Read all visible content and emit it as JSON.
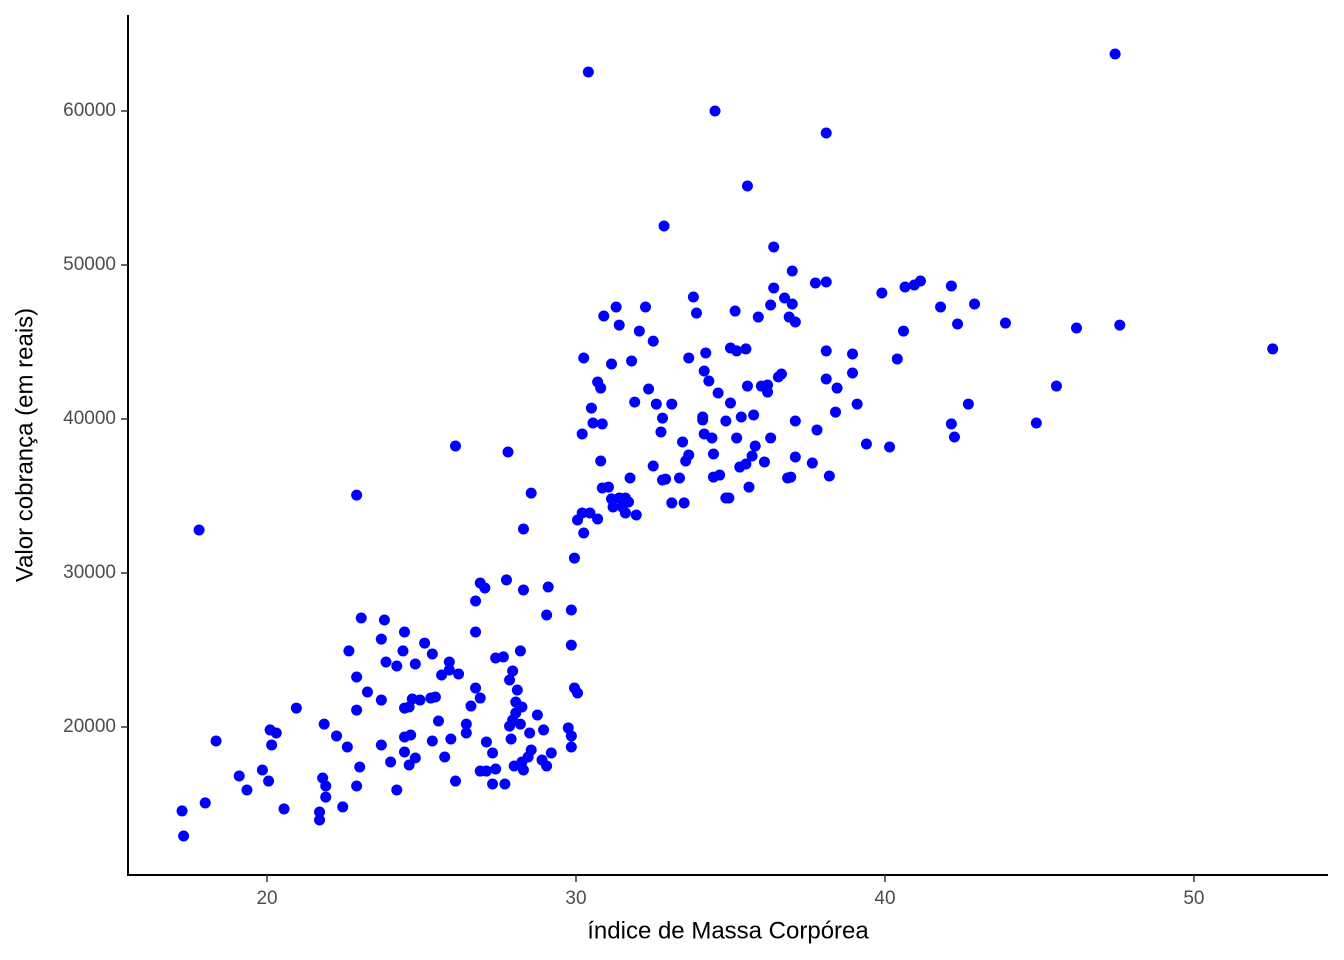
{
  "chart_data": {
    "type": "scatter",
    "x_label": "índice de Massa Corpórea",
    "y_label": "Valor cobrança (em reais)",
    "color": "blue",
    "xlim": [
      15.5,
      54.34
    ],
    "ylim": [
      10390,
      66234
    ],
    "xticks": [
      20,
      30,
      40,
      50
    ],
    "yticks": [
      20000,
      30000,
      40000,
      50000,
      60000
    ],
    "grid": false,
    "x": [
      17.25,
      17.3,
      18.0,
      18.35,
      17.8,
      19.1,
      19.35,
      19.85,
      20.05,
      20.1,
      20.15,
      20.3,
      20.55,
      20.95,
      21.7,
      21.7,
      21.8,
      21.9,
      21.9,
      21.85,
      22.25,
      22.45,
      22.6,
      22.65,
      22.9,
      22.9,
      22.9,
      23.0,
      22.9,
      23.05,
      23.25,
      23.7,
      23.7,
      23.8,
      23.85,
      24.2,
      23.7,
      24.0,
      24.2,
      24.4,
      24.45,
      24.45,
      24.45,
      24.45,
      24.6,
      24.65,
      24.7,
      24.6,
      24.8,
      24.8,
      24.95,
      25.1,
      25.35,
      25.35,
      25.3,
      25.45,
      25.65,
      25.55,
      25.75,
      25.9,
      25.9,
      25.95,
      26.1,
      26.1,
      26.2,
      26.45,
      26.45,
      26.6,
      26.75,
      26.75,
      26.75,
      26.9,
      26.9,
      26.9,
      27.05,
      27.1,
      27.1,
      27.3,
      27.3,
      27.4,
      27.4,
      27.65,
      27.7,
      27.75,
      27.8,
      27.85,
      27.85,
      27.9,
      27.95,
      27.95,
      28.0,
      28.05,
      28.05,
      28.1,
      28.2,
      28.2,
      28.25,
      28.25,
      28.3,
      28.3,
      28.3,
      28.45,
      28.5,
      28.55,
      28.55,
      28.75,
      28.9,
      28.95,
      29.05,
      29.1,
      29.05,
      29.2,
      29.75,
      29.85,
      29.85,
      29.85,
      29.85,
      29.95,
      30.05,
      29.95,
      30.05,
      30.2,
      30.2,
      30.25,
      30.25,
      30.4,
      30.45,
      30.5,
      30.55,
      30.7,
      30.7,
      30.8,
      30.8,
      30.85,
      30.85,
      30.9,
      31.05,
      31.15,
      31.15,
      31.2,
      31.3,
      31.4,
      31.4,
      31.5,
      31.6,
      31.6,
      31.7,
      31.75,
      31.8,
      31.9,
      31.95,
      32.05,
      32.25,
      32.35,
      32.5,
      32.5,
      32.6,
      32.75,
      32.85,
      32.8,
      32.8,
      32.9,
      33.1,
      33.1,
      33.35,
      33.45,
      33.5,
      33.55,
      33.65,
      33.65,
      33.8,
      33.9,
      34.1,
      34.1,
      34.15,
      34.15,
      34.2,
      34.3,
      34.4,
      34.45,
      34.5,
      34.45,
      34.6,
      34.65,
      34.85,
      34.85,
      34.95,
      35.0,
      35.0,
      35.15,
      35.2,
      35.2,
      35.3,
      35.35,
      35.5,
      35.5,
      35.55,
      35.55,
      35.6,
      35.7,
      35.75,
      35.8,
      35.9,
      36.0,
      36.1,
      36.2,
      36.2,
      36.3,
      36.3,
      36.4,
      36.4,
      36.55,
      36.65,
      36.75,
      36.85,
      36.9,
      36.95,
      37.0,
      37.0,
      37.1,
      37.1,
      37.1,
      37.65,
      37.8,
      37.75,
      38.1,
      38.1,
      38.1,
      38.1,
      38.2,
      38.45,
      38.4,
      38.95,
      38.95,
      39.1,
      39.4,
      39.9,
      40.15,
      40.4,
      40.6,
      40.65,
      40.95,
      41.15,
      41.8,
      42.15,
      42.15,
      42.25,
      42.35,
      42.7,
      42.9,
      43.9,
      44.9,
      45.55,
      46.2,
      47.45,
      47.6,
      52.55
    ],
    "values": [
      14550,
      12920,
      15070,
      19090,
      32790,
      16820,
      15910,
      17210,
      16490,
      19810,
      18830,
      19610,
      14680,
      21230,
      14480,
      13960,
      16690,
      16170,
      15450,
      20190,
      19420,
      14810,
      18700,
      24940,
      23250,
      21100,
      35060,
      17400,
      16170,
      27080,
      22270,
      18830,
      25710,
      26950,
      24220,
      23960,
      21750,
      17730,
      15910,
      24940,
      26170,
      21230,
      19350,
      18380,
      21300,
      19480,
      21820,
      17530,
      24090,
      17990,
      21750,
      25450,
      24740,
      19090,
      21880,
      21950,
      23380,
      20390,
      18050,
      24220,
      23700,
      19220,
      38250,
      16490,
      23440,
      20190,
      19610,
      21360,
      26170,
      28180,
      22530,
      17140,
      21880,
      29350,
      29030,
      17140,
      19030,
      18310,
      16300,
      24480,
      17270,
      24550,
      16300,
      29550,
      37860,
      23050,
      20060,
      19220,
      23640,
      20450,
      17470,
      20910,
      21620,
      22400,
      20190,
      24940,
      21300,
      17730,
      17210,
      28900,
      32860,
      18050,
      19610,
      18510,
      35190,
      20780,
      17860,
      19810,
      17470,
      29090,
      27270,
      18310,
      19940,
      27600,
      25320,
      19420,
      18700,
      22530,
      22210,
      30970,
      33440,
      33900,
      39030,
      43960,
      32600,
      62530,
      33900,
      40710,
      39740,
      33510,
      42400,
      37270,
      42010,
      35520,
      39680,
      46690,
      35580,
      34810,
      43570,
      34290,
      47270,
      46100,
      34870,
      34290,
      34870,
      33900,
      34610,
      36170,
      43770,
      41100,
      33770,
      45710,
      47270,
      41950,
      45060,
      36950,
      40970,
      39160,
      52530,
      40060,
      36040,
      36100,
      34550,
      40970,
      36170,
      38510,
      34550,
      37270,
      37660,
      43960,
      47920,
      46880,
      40130,
      39940,
      43120,
      39030,
      44290,
      42470,
      38770,
      37730,
      60000,
      36230,
      41690,
      36360,
      34870,
      39870,
      34870,
      41040,
      44610,
      47010,
      38770,
      44420,
      36880,
      40130,
      44550,
      37080,
      42140,
      55130,
      35580,
      37600,
      40260,
      38250,
      46620,
      42140,
      37210,
      42210,
      41750,
      38770,
      47400,
      48510,
      51170,
      42730,
      42920,
      47860,
      36170,
      46620,
      36230,
      47470,
      49610,
      46300,
      39870,
      37530,
      37140,
      39290,
      48830,
      48900,
      58570,
      44420,
      42600,
      36300,
      42010,
      40450,
      44220,
      42990,
      40970,
      38380,
      48180,
      38180,
      43900,
      45710,
      48570,
      48700,
      48960,
      47270,
      48640,
      39680,
      38830,
      46170,
      40970,
      47470,
      46230,
      39740,
      42140,
      45910,
      63700,
      46100,
      44550
    ]
  }
}
